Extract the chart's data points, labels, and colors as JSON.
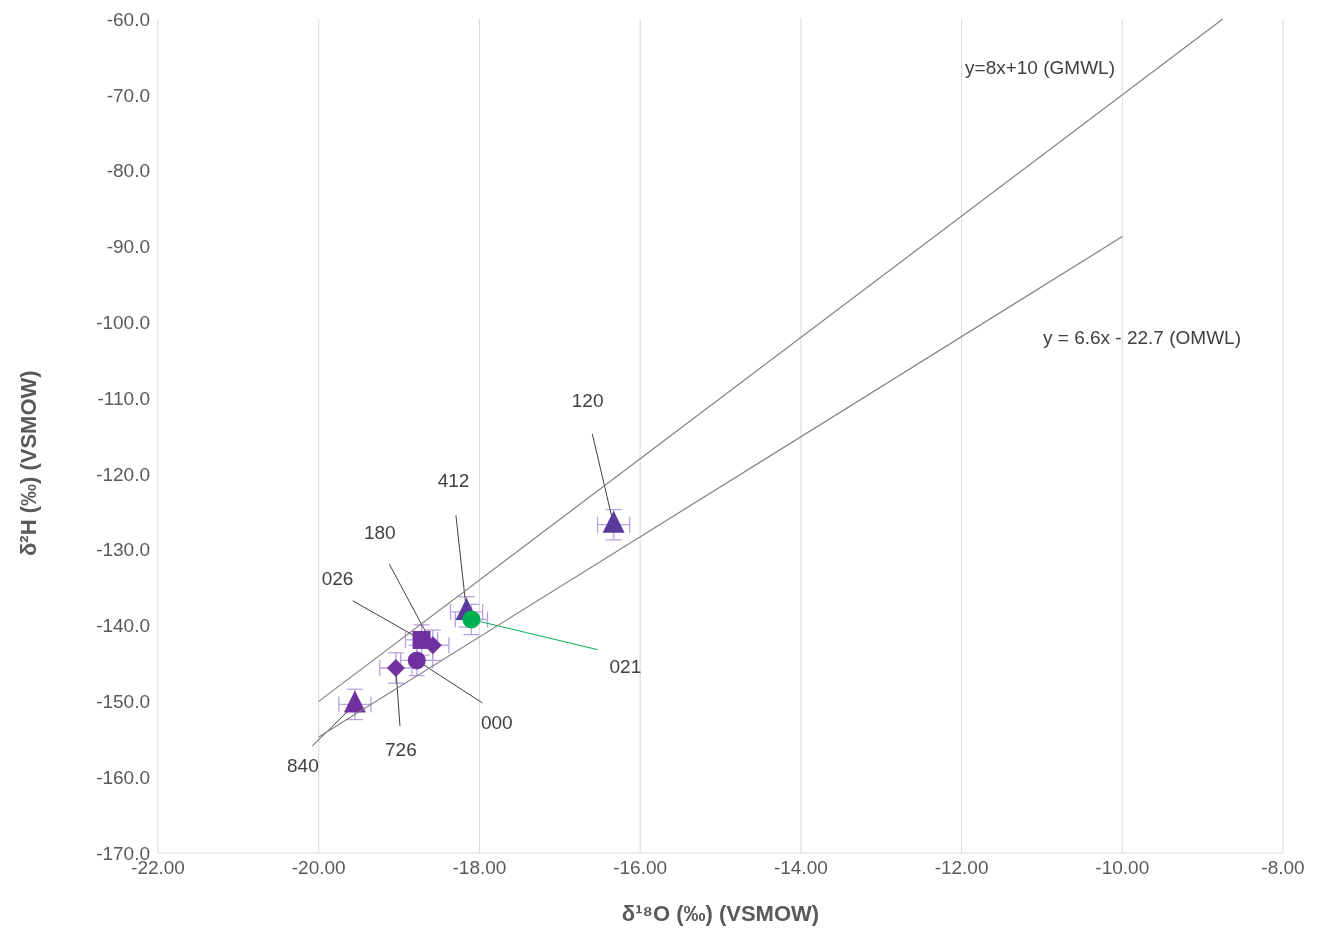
{
  "chart_data": {
    "type": "scatter",
    "xlabel": "δ¹⁸O (‰) (VSMOW)",
    "ylabel": "δ²H (‰) (VSMOW)",
    "xlim": [
      -22,
      -8
    ],
    "xticks": [
      {
        "value": -22,
        "label": "-22.00"
      },
      {
        "value": -20,
        "label": "-20.00"
      },
      {
        "value": -18,
        "label": "-18.00"
      },
      {
        "value": -16,
        "label": "-16.00"
      },
      {
        "value": -14,
        "label": "-14.00"
      },
      {
        "value": -12,
        "label": "-12.00"
      },
      {
        "value": -10,
        "label": "-10.00"
      },
      {
        "value": -8,
        "label": "-8.00"
      }
    ],
    "ylim": [
      -170,
      -60
    ],
    "yticks": [
      {
        "value": -170,
        "label": "-170.0"
      },
      {
        "value": -160,
        "label": "-160.0"
      },
      {
        "value": -150,
        "label": "-150.0"
      },
      {
        "value": -140,
        "label": "-140.0"
      },
      {
        "value": -130,
        "label": "-130.0"
      },
      {
        "value": -120,
        "label": "-120.0"
      },
      {
        "value": -110,
        "label": "-110.0"
      },
      {
        "value": -100,
        "label": "-100.0"
      },
      {
        "value": -90,
        "label": "-90.0"
      },
      {
        "value": -80,
        "label": "-80.0"
      },
      {
        "value": -70,
        "label": "-70.0"
      },
      {
        "value": -60,
        "label": "-60.0"
      }
    ],
    "grid": "x",
    "legend": false,
    "series": [
      {
        "name": "120",
        "color": "#5b3a9e",
        "marker": "triangle",
        "x": [
          -16.33
        ],
        "values": [
          -126.7
        ],
        "errors": [
          2
        ],
        "xerrors": [
          0.2
        ]
      },
      {
        "name": "412",
        "color": "#5b3a9e",
        "marker": "triangle",
        "x": [
          -18.16
        ],
        "values": [
          -138.2
        ],
        "errors": [
          2
        ],
        "xerrors": [
          0.2
        ]
      },
      {
        "name": "021",
        "color": "#00b050",
        "marker": "circle",
        "x": [
          -18.1
        ],
        "values": [
          -139.2
        ],
        "errors": [
          2
        ],
        "xerrors": [
          0.2
        ]
      },
      {
        "name": "180",
        "color": "#7030a0",
        "marker": "diamond",
        "x": [
          -18.58
        ],
        "values": [
          -142.6
        ],
        "errors": [
          2
        ],
        "xerrors": [
          0.2
        ]
      },
      {
        "name": "026",
        "color": "#7030a0",
        "marker": "square",
        "x": [
          -18.72
        ],
        "values": [
          -141.9
        ],
        "errors": [
          2
        ],
        "xerrors": [
          0.2
        ]
      },
      {
        "name": "000",
        "color": "#7030a0",
        "marker": "circle",
        "x": [
          -18.78
        ],
        "values": [
          -144.6
        ],
        "errors": [
          2
        ],
        "xerrors": [
          0.2
        ]
      },
      {
        "name": "726",
        "color": "#7030a0",
        "marker": "diamond",
        "x": [
          -19.04
        ],
        "values": [
          -145.6
        ],
        "errors": [
          2
        ],
        "xerrors": [
          0.2
        ]
      },
      {
        "name": "840",
        "color": "#7030a0",
        "marker": "triangle",
        "x": [
          -19.55
        ],
        "values": [
          -150.4
        ],
        "errors": [
          2
        ],
        "xerrors": [
          0.2
        ]
      },
      {
        "type": "line",
        "color": "#808080",
        "marker": "none",
        "x": [
          -20,
          -8.75
        ],
        "values": [
          -150,
          -60
        ]
      },
      {
        "type": "line",
        "color": "#808080",
        "marker": "none",
        "x": [
          -20,
          -10
        ],
        "values": [
          -154.7,
          -88.7
        ]
      }
    ],
    "annotations": [
      "y=8x+10 (GMWL)",
      "y = 6.6x - 22.7 (OMWL)"
    ]
  }
}
